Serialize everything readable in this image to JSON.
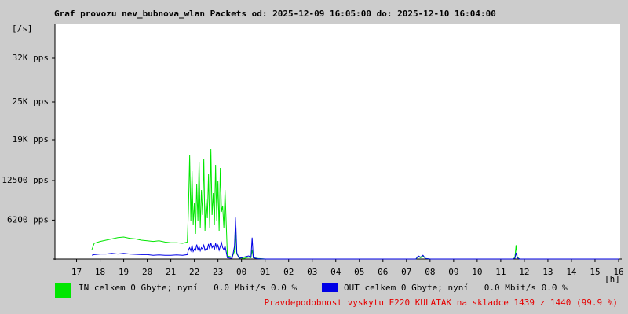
{
  "chart_data": {
    "type": "line",
    "title": "Graf provozu nev_bubnova_wlan Packets od: 2025-12-09 16:05:00 do: 2025-12-10 16:04:00",
    "y_label": "[/s]",
    "x_label": "[h]",
    "xlim": [
      16.083,
      40.067
    ],
    "xticks": [
      17,
      18,
      19,
      20,
      21,
      22,
      23,
      {
        "value": 24,
        "label": "00"
      },
      {
        "value": 25,
        "label": "01"
      },
      {
        "value": 26,
        "label": "02"
      },
      {
        "value": 27,
        "label": "03"
      },
      {
        "value": 28,
        "label": "04"
      },
      {
        "value": 29,
        "label": "05"
      },
      {
        "value": 30,
        "label": "06"
      },
      {
        "value": 31,
        "label": "07"
      },
      {
        "value": 32,
        "label": "08"
      },
      {
        "value": 33,
        "label": "09"
      },
      {
        "value": 34,
        "label": "10"
      },
      {
        "value": 35,
        "label": "11"
      },
      {
        "value": 36,
        "label": "12"
      },
      {
        "value": 37,
        "label": "13"
      },
      {
        "value": 38,
        "label": "14"
      },
      {
        "value": 39,
        "label": "15"
      },
      {
        "value": 40,
        "label": "16"
      }
    ],
    "ylim": [
      0,
      37500
    ],
    "yticks": [
      {
        "value": 6200,
        "label": "6200 pps"
      },
      {
        "value": 12500,
        "label": "12500 pps"
      },
      {
        "value": 19000,
        "label": "19K pps"
      },
      {
        "value": 25000,
        "label": "25K pps"
      },
      {
        "value": 32000,
        "label": "32K pps"
      }
    ],
    "x": [
      17.65,
      17.75,
      18.0,
      18.25,
      18.5,
      18.75,
      19.0,
      19.25,
      19.5,
      19.75,
      20.0,
      20.25,
      20.5,
      20.75,
      21.0,
      21.25,
      21.5,
      21.7,
      21.75,
      21.8,
      21.85,
      21.9,
      21.95,
      22.0,
      22.05,
      22.1,
      22.15,
      22.2,
      22.25,
      22.3,
      22.35,
      22.4,
      22.45,
      22.5,
      22.55,
      22.6,
      22.65,
      22.7,
      22.75,
      22.8,
      22.85,
      22.9,
      22.95,
      23.0,
      23.05,
      23.1,
      23.15,
      23.2,
      23.25,
      23.3,
      23.4,
      23.6,
      23.7,
      23.75,
      23.8,
      23.9,
      24.1,
      24.3,
      24.4,
      24.45,
      24.5,
      24.7,
      25.0,
      26.0,
      28.0,
      30.0,
      31.0,
      31.4,
      31.5,
      31.6,
      31.7,
      31.8,
      32.0,
      34.0,
      35.5,
      35.6,
      35.65,
      35.7,
      35.8,
      36.0,
      38.0,
      40.0
    ],
    "series": [
      {
        "name": "IN celkem 0 Gbyte; nyní   0.0 Mbit/s 0.0 %",
        "color": "#00e600",
        "values": [
          1500,
          2500,
          2800,
          3000,
          3200,
          3400,
          3500,
          3300,
          3200,
          3000,
          2900,
          2800,
          2900,
          2700,
          2600,
          2600,
          2500,
          2700,
          8000,
          16500,
          6000,
          14000,
          5500,
          9000,
          4000,
          12000,
          6000,
          15500,
          5000,
          11000,
          7000,
          16000,
          4500,
          9500,
          6500,
          13500,
          5000,
          17500,
          7000,
          10500,
          5500,
          15000,
          6000,
          12500,
          4500,
          14500,
          7500,
          8500,
          5000,
          11000,
          500,
          300,
          1200,
          4500,
          800,
          200,
          100,
          300,
          200,
          1500,
          200,
          100,
          0,
          0,
          0,
          0,
          0,
          0,
          400,
          200,
          500,
          100,
          0,
          0,
          0,
          200,
          2200,
          300,
          0,
          0,
          0,
          0
        ]
      },
      {
        "name": "OUT celkem 0 Gbyte; nyní   0.0 Mbit/s 0.0 %",
        "color": "#0000e6",
        "values": [
          600,
          700,
          800,
          800,
          900,
          800,
          900,
          800,
          750,
          700,
          700,
          600,
          650,
          600,
          600,
          650,
          600,
          700,
          1500,
          1800,
          1300,
          2200,
          1200,
          1600,
          1400,
          2300,
          1500,
          2000,
          1300,
          1800,
          1600,
          2200,
          1400,
          1700,
          1500,
          2400,
          1600,
          2600,
          1800,
          2100,
          1500,
          2500,
          1700,
          2200,
          1400,
          2000,
          2600,
          1800,
          1500,
          2100,
          200,
          100,
          2000,
          6600,
          1000,
          100,
          300,
          500,
          300,
          3400,
          200,
          50,
          0,
          0,
          0,
          0,
          0,
          0,
          500,
          300,
          600,
          100,
          0,
          0,
          0,
          100,
          1000,
          200,
          0,
          0,
          0,
          0
        ]
      }
    ],
    "footer": "Pravdepodobnost vyskytu E220 KULATAK na skladce 1439 z 1440 (99.9 %)",
    "footer_color": "#e60000"
  }
}
